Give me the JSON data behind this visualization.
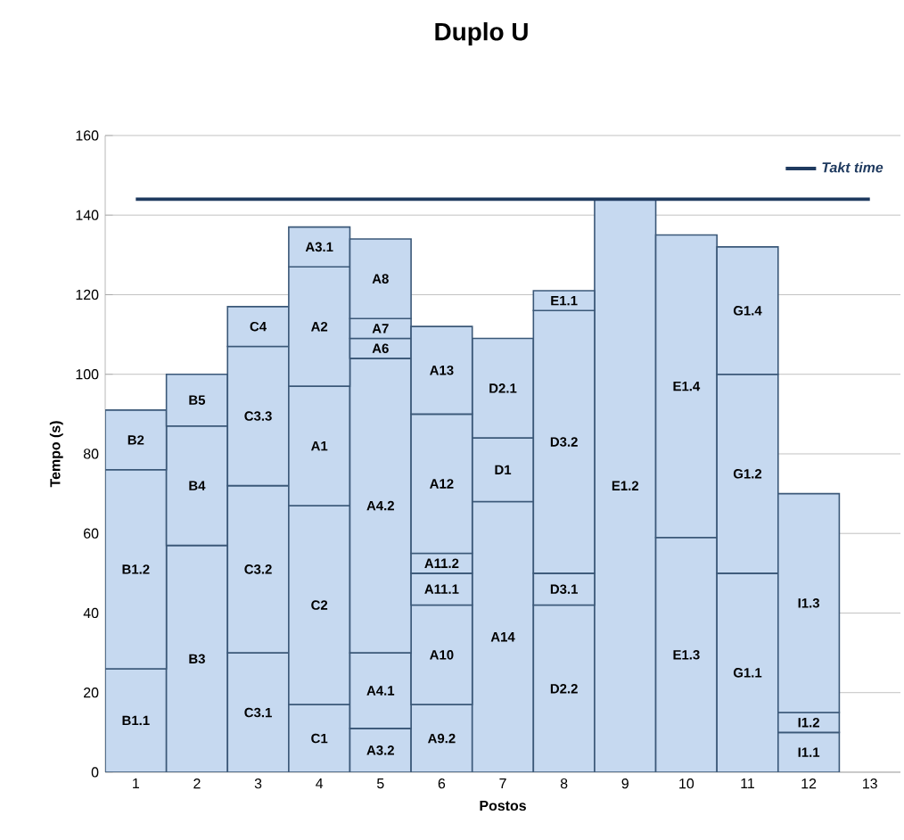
{
  "chart_data": {
    "type": "bar",
    "stacked": true,
    "title": "Duplo U",
    "xlabel": "Postos",
    "ylabel": "Tempo (s)",
    "categories": [
      "1",
      "2",
      "3",
      "4",
      "5",
      "6",
      "7",
      "8",
      "9",
      "10",
      "11",
      "12",
      "13"
    ],
    "ylim": [
      0,
      160
    ],
    "yticks": [
      0,
      20,
      40,
      60,
      80,
      100,
      120,
      140,
      160
    ],
    "grid": "y",
    "legend": "top right",
    "series": [
      {
        "color": "#c6d9f0",
        "values": [
          26,
          57,
          30,
          17,
          11,
          17,
          68,
          42,
          144,
          59,
          50,
          10,
          null
        ],
        "value_labels": [
          "B1.1",
          "B3",
          "C3.1",
          "C1",
          "A3.2",
          "A9.2",
          "A14",
          "D2.2",
          "E1.2",
          "E1.3",
          "G1.1",
          "I1.1",
          null
        ]
      },
      {
        "color": "#c6d9f0",
        "values": [
          50,
          30,
          42,
          50,
          19,
          25,
          16,
          8,
          null,
          76,
          50,
          5,
          null
        ],
        "value_labels": [
          "B1.2",
          "B4",
          "C3.2",
          "C2",
          "A4.1",
          "A10",
          "D1",
          "D3.1",
          null,
          "E1.4",
          "G1.2",
          "I1.2",
          null
        ]
      },
      {
        "color": "#c6d9f0",
        "values": [
          15,
          13,
          35,
          30,
          74,
          8,
          25,
          66,
          null,
          null,
          32,
          55,
          null
        ],
        "value_labels": [
          "B2",
          "B5",
          "C3.3",
          "A1",
          "A4.2",
          "A11.1",
          "D2.1",
          "D3.2",
          null,
          null,
          "G1.4",
          "I1.3",
          null
        ]
      },
      {
        "color": "#c6d9f0",
        "values": [
          null,
          null,
          10,
          30,
          5,
          5,
          null,
          5,
          null,
          null,
          null,
          null,
          null
        ],
        "value_labels": [
          null,
          null,
          "C4",
          "A2",
          "A6",
          "A11.2",
          null,
          "E1.1",
          null,
          null,
          null,
          null,
          null
        ]
      },
      {
        "color": "#c6d9f0",
        "values": [
          null,
          null,
          null,
          10,
          5,
          35,
          null,
          null,
          null,
          null,
          null,
          null,
          null
        ],
        "value_labels": [
          null,
          null,
          null,
          "A3.1",
          "A7",
          "A12",
          null,
          null,
          null,
          null,
          null,
          null,
          null
        ]
      },
      {
        "color": "#c6d9f0",
        "values": [
          null,
          null,
          null,
          null,
          20,
          22,
          null,
          null,
          null,
          null,
          null,
          null,
          null
        ],
        "value_labels": [
          null,
          null,
          null,
          null,
          "A8",
          "A13",
          null,
          null,
          null,
          null,
          null,
          null,
          null
        ]
      }
    ],
    "ref_lines": [
      {
        "axis": "y",
        "value": 144,
        "label": "Takt time",
        "color": "#1f3a5f"
      }
    ]
  }
}
